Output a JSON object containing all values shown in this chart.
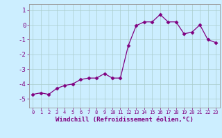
{
  "x": [
    0,
    1,
    2,
    3,
    4,
    5,
    6,
    7,
    8,
    9,
    10,
    11,
    12,
    13,
    14,
    15,
    16,
    17,
    18,
    19,
    20,
    21,
    22,
    23
  ],
  "y": [
    -4.7,
    -4.6,
    -4.7,
    -4.3,
    -4.1,
    -4.0,
    -3.7,
    -3.6,
    -3.6,
    -3.3,
    -3.6,
    -3.6,
    -1.4,
    -0.05,
    0.2,
    0.2,
    0.7,
    0.2,
    0.2,
    -0.6,
    -0.5,
    0.0,
    -1.0,
    -1.2
  ],
  "line_color": "#800080",
  "marker": "D",
  "marker_size": 2.5,
  "bg_color": "#cceeff",
  "grid_color": "#aacccc",
  "xlabel": "Windchill (Refroidissement éolien,°C)",
  "xlim": [
    -0.5,
    23.5
  ],
  "ylim": [
    -5.6,
    1.4
  ],
  "yticks": [
    1,
    0,
    -1,
    -2,
    -3,
    -4,
    -5
  ],
  "xticks": [
    0,
    1,
    2,
    3,
    4,
    5,
    6,
    7,
    8,
    9,
    10,
    11,
    12,
    13,
    14,
    15,
    16,
    17,
    18,
    19,
    20,
    21,
    22,
    23
  ],
  "label_color": "#800080",
  "tick_color": "#800080",
  "xticklabels": [
    "0",
    "1",
    "2",
    "3",
    "4",
    "5",
    "6",
    "7",
    "8",
    "9",
    "10",
    "11",
    "12",
    "13",
    "14",
    "15",
    "16",
    "17",
    "18",
    "19",
    "20",
    "21",
    "22",
    "23"
  ]
}
